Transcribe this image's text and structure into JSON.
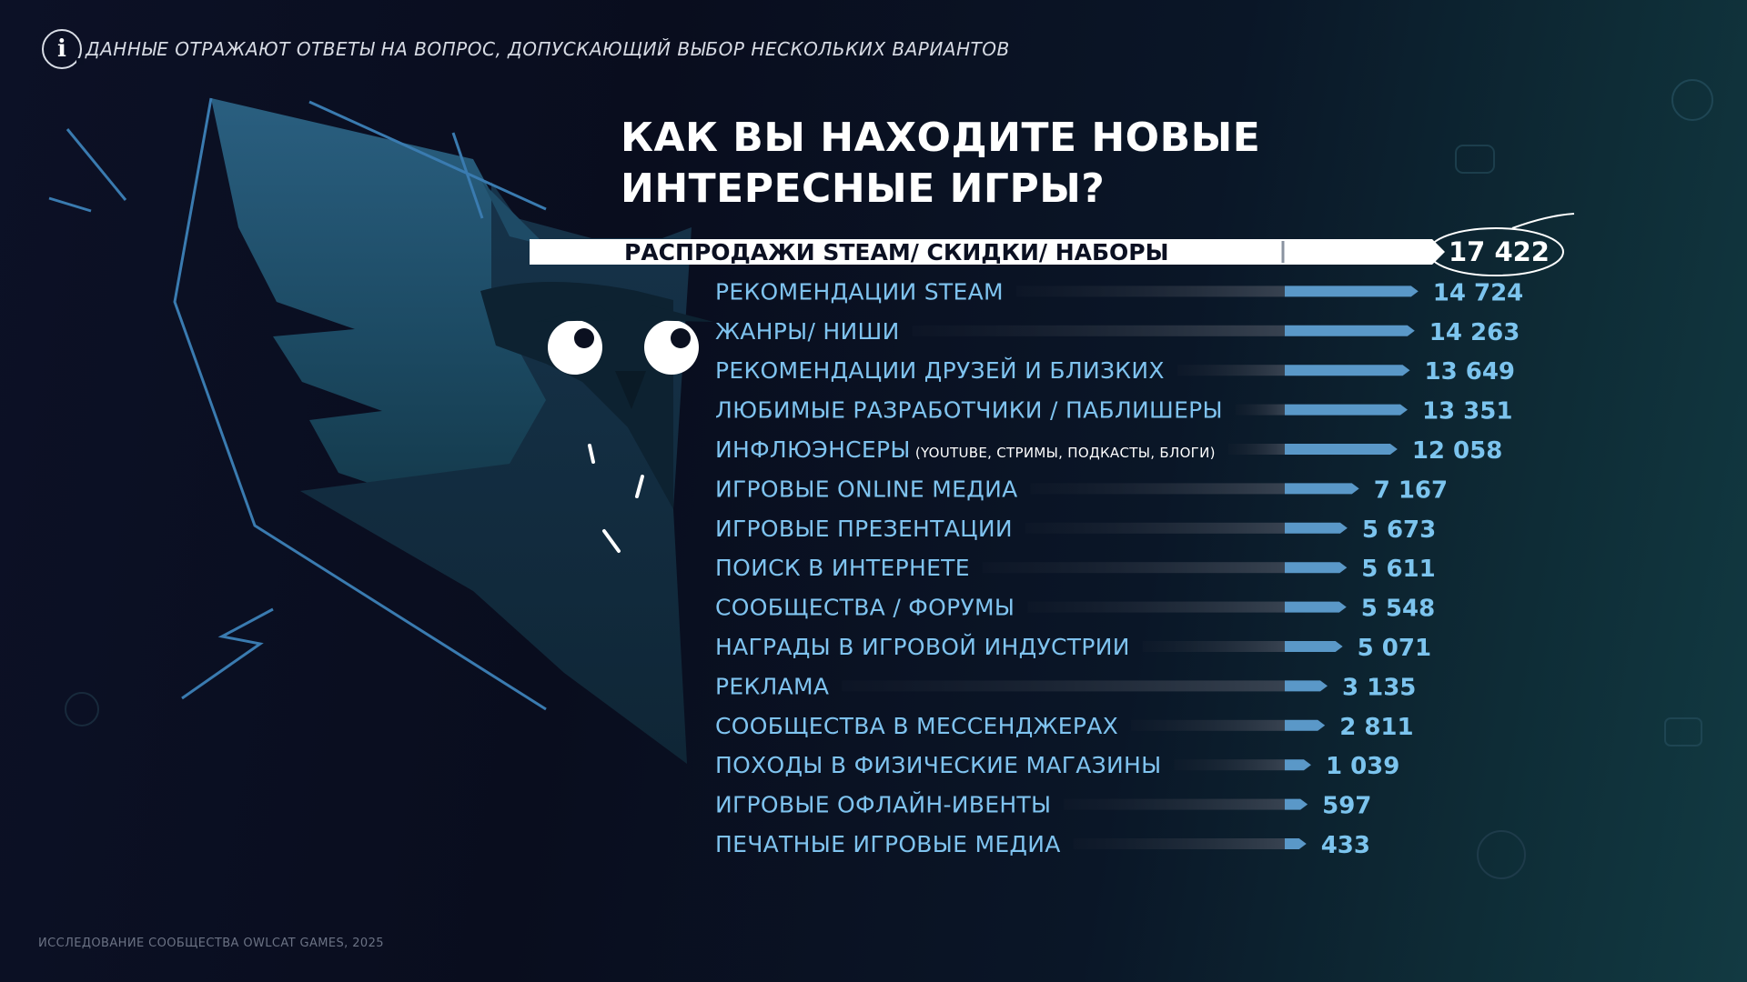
{
  "note": {
    "icon": "info-icon",
    "text": "ДАННЫЕ ОТРАЖАЮТ ОТВЕТЫ НА ВОПРОС, ДОПУСКАЮЩИЙ ВЫБОР НЕСКОЛЬКИХ ВАРИАНТОВ"
  },
  "title_line1": "КАК ВЫ НАХОДИТЕ НОВЫЕ",
  "title_line2": "ИНТЕРЕСНЫЕ ИГРЫ?",
  "footer": "ИССЛЕДОВАНИЕ СООБЩЕСТВА OWLCAT GAMES, 2025",
  "colors": {
    "accent_blue": "#7cc4ee",
    "bar_blue": "#5a98c8",
    "owl_body": "#1c4a66",
    "top_bar": "#ffffff",
    "label_blue": "#7fc3ef"
  },
  "chart_data": {
    "type": "bar",
    "orientation": "horizontal",
    "title": "КАК ВЫ НАХОДИТЕ НОВЫЕ ИНТЕРЕСНЫЕ ИГРЫ?",
    "categories": [
      "РАСПРОДАЖИ STEAM/ СКИДКИ/ НАБОРЫ",
      "РЕКОМЕНДАЦИИ STEAM",
      "ЖАНРЫ/ НИШИ",
      "РЕКОМЕНДАЦИИ ДРУЗЕЙ И БЛИЗКИХ",
      "ЛЮБИМЫЕ РАЗРАБОТЧИКИ / ПАБЛИШЕРЫ",
      "ИНФЛЮЭНСЕРЫ",
      "ИГРОВЫЕ ONLINE МЕДИА",
      "ИГРОВЫЕ ПРЕЗЕНТАЦИИ",
      "ПОИСК В ИНТЕРНЕТЕ",
      "СООБЩЕСТВА / ФОРУМЫ",
      "НАГРАДЫ В ИГРОВОЙ ИНДУСТРИИ",
      "РЕКЛАМА",
      "СООБЩЕСТВА В МЕССЕНДЖЕРАХ",
      "ПОХОДЫ В ФИЗИЧЕСКИЕ МАГАЗИНЫ",
      "ИГРОВЫЕ ОФЛАЙН-ИВЕНТЫ",
      "ПЕЧАТНЫЕ ИГРОВЫЕ МЕДИА"
    ],
    "sublabels": [
      "",
      "",
      "",
      "",
      "",
      "(YOUTUBE, СТРИМЫ, ПОДКАСТЫ, БЛОГИ)",
      "",
      "",
      "",
      "",
      "",
      "",
      "",
      "",
      "",
      ""
    ],
    "values": [
      17422,
      14724,
      14263,
      13649,
      13351,
      12058,
      7167,
      5673,
      5611,
      5548,
      5071,
      3135,
      2811,
      1039,
      597,
      433
    ],
    "value_labels": [
      "17 422",
      "14 724",
      "14 263",
      "13 649",
      "13 351",
      "12 058",
      "7 167",
      "5 673",
      "5 611",
      "5 548",
      "5 071",
      "3 135",
      "2 811",
      "1 039",
      "597",
      "433"
    ],
    "highlight_index": 0,
    "xlim": [
      0,
      17422
    ]
  }
}
